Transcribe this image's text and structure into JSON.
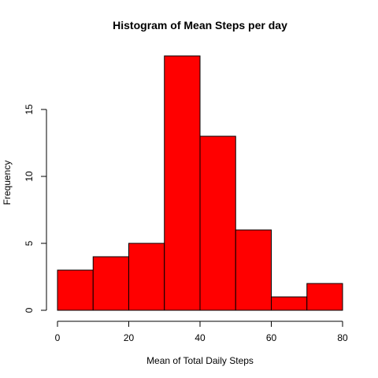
{
  "chart_data": {
    "type": "bar",
    "title": "Histogram of Mean Steps per day",
    "xlabel": "Mean of Total Daily Steps",
    "ylabel": "Frequency",
    "bins": [
      {
        "from": 0,
        "to": 10,
        "count": 3
      },
      {
        "from": 10,
        "to": 20,
        "count": 4
      },
      {
        "from": 20,
        "to": 30,
        "count": 5
      },
      {
        "from": 30,
        "to": 40,
        "count": 19
      },
      {
        "from": 40,
        "to": 50,
        "count": 13
      },
      {
        "from": 50,
        "to": 60,
        "count": 6
      },
      {
        "from": 60,
        "to": 70,
        "count": 1
      },
      {
        "from": 70,
        "to": 80,
        "count": 2
      }
    ],
    "xlim": [
      0,
      80
    ],
    "ylim": [
      0,
      19
    ],
    "x_ticks": [
      "0",
      "20",
      "40",
      "60",
      "80"
    ],
    "y_ticks": [
      "0",
      "5",
      "10",
      "15"
    ],
    "bar_color": "#ff0000",
    "grid": false,
    "legend": "none"
  }
}
